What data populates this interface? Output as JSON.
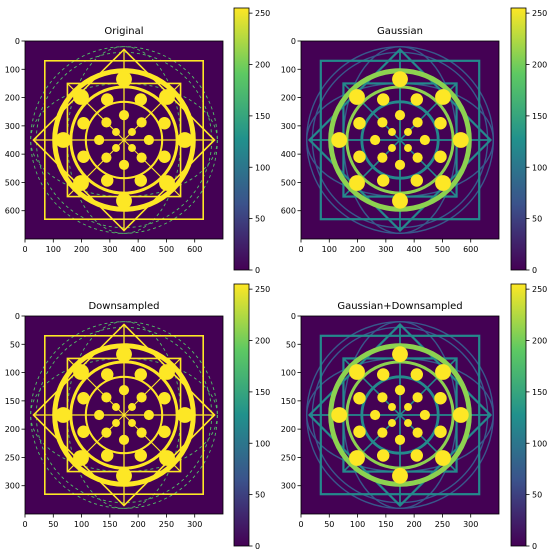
{
  "colormap": "viridis",
  "colormap_stops": [
    "#440154",
    "#3b528b",
    "#21918c",
    "#5ec962",
    "#fde725"
  ],
  "chart_data": [
    {
      "type": "heatmap",
      "title": "Original",
      "image_size": [
        700,
        700
      ],
      "xticks": [
        0,
        100,
        200,
        300,
        400,
        500,
        600
      ],
      "yticks": [
        0,
        100,
        200,
        300,
        400,
        500,
        600
      ],
      "colorbar": {
        "range": [
          0,
          255
        ],
        "ticks": [
          0,
          50,
          100,
          150,
          200,
          250
        ]
      },
      "blurred": false,
      "values": {
        "background": 0,
        "shapes": 255,
        "outer_thin_lines": 180
      }
    },
    {
      "type": "heatmap",
      "title": "Gaussian",
      "image_size": [
        700,
        700
      ],
      "xticks": [
        0,
        100,
        200,
        300,
        400,
        500,
        600
      ],
      "yticks": [
        0,
        100,
        200,
        300,
        400,
        500,
        600
      ],
      "colorbar": {
        "range": [
          0,
          255
        ],
        "ticks": [
          0,
          50,
          100,
          150,
          200,
          250
        ]
      },
      "blurred": true,
      "values": {
        "background": 0,
        "shapes": 255,
        "thick_lines": 210,
        "thin_lines": 120,
        "faint_lines": 70
      }
    },
    {
      "type": "heatmap",
      "title": "Downsampled",
      "image_size": [
        350,
        350
      ],
      "xticks": [
        0,
        50,
        100,
        150,
        200,
        250,
        300
      ],
      "yticks": [
        0,
        50,
        100,
        150,
        200,
        250,
        300
      ],
      "colorbar": {
        "range": [
          0,
          255
        ],
        "ticks": [
          0,
          50,
          100,
          150,
          200,
          250
        ]
      },
      "blurred": false,
      "values": {
        "background": 0,
        "shapes": 255,
        "outer_thin_lines": 180
      }
    },
    {
      "type": "heatmap",
      "title": "Gaussian+Downsampled",
      "image_size": [
        350,
        350
      ],
      "xticks": [
        0,
        50,
        100,
        150,
        200,
        250,
        300
      ],
      "yticks": [
        0,
        50,
        100,
        150,
        200,
        250,
        300
      ],
      "colorbar": {
        "range": [
          0,
          255
        ],
        "ticks": [
          0,
          50,
          100,
          150,
          200,
          250
        ]
      },
      "blurred": true,
      "values": {
        "background": 0,
        "shapes": 255,
        "thick_lines": 210,
        "thin_lines": 120,
        "faint_lines": 70
      }
    }
  ]
}
